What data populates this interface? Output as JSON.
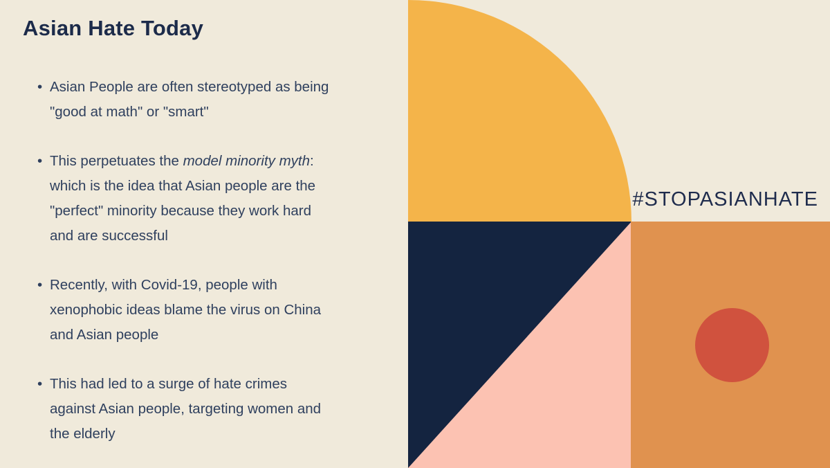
{
  "slide": {
    "title": "Asian Hate Today",
    "bullets": [
      {
        "text": "Asian People are often stereotyped as being\n\"good at math\" or \"smart\""
      },
      {
        "pre": "This perpetuates the ",
        "italic": "model minority myth",
        "post": ":\nwhich is the idea that Asian people are the\n\"perfect\" minority because they work hard\nand are successful"
      },
      {
        "text": "Recently, with Covid-19, people with\nxenophobic ideas blame the virus on China\nand Asian people"
      },
      {
        "text": "This had led to a surge of hate crimes\nagainst Asian people, targeting women and\nthe elderly"
      }
    ],
    "hashtag": "#STOPASIANHATE",
    "colors": {
      "background": "#F0EADB",
      "yellow": "#F4B44A",
      "navy": "#142440",
      "pink": "#FCC2B2",
      "orange": "#E0924F",
      "red": "#D0523E",
      "title_text": "#1C2B4A",
      "body_text": "#2F405E"
    }
  }
}
